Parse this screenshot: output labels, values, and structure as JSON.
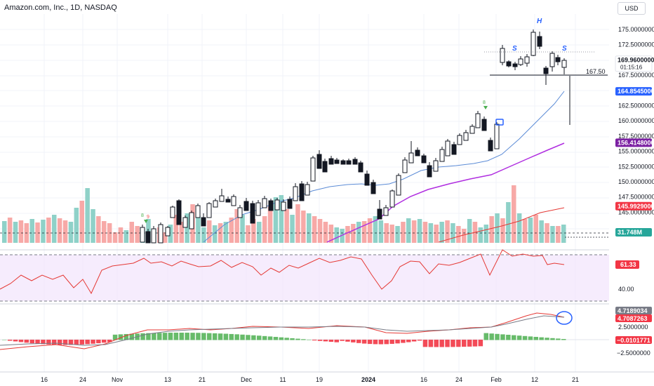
{
  "header": {
    "title": "Amazon.com, Inc., 1D, NASDAQ",
    "currency": "USD"
  },
  "chart_data": {
    "type": "candlestick",
    "price_axis": {
      "ticks": [
        "175.0000000",
        "172.5000000",
        "167.5000000",
        "162.5000000",
        "160.0000000",
        "157.5000000",
        "155.0000000",
        "152.5000000",
        "150.0000000",
        "147.5000000",
        "145.0000000"
      ]
    },
    "price_markers": [
      {
        "label": "169.9600000",
        "sub": "01:15:16",
        "value": 169.96,
        "color": "#ffffff",
        "text_color": "#131722"
      },
      {
        "label": "164.8545000",
        "value": 164.8545,
        "color": "#2962ff",
        "text_color": "#ffffff"
      },
      {
        "label": "156.4148000",
        "value": 156.4148,
        "color": "#7b1fa2",
        "text_color": "#ffffff"
      },
      {
        "label": "145.9929000",
        "value": 145.9929,
        "color": "#f23645",
        "text_color": "#ffffff"
      },
      {
        "label": "31.748M",
        "value": 141.7,
        "color": "#26a69a",
        "text_color": "#ffffff"
      }
    ],
    "neckline_label": "167.50",
    "pattern_labels": [
      "S",
      "H",
      "S"
    ],
    "signal_labels": [
      "8",
      "9",
      "8"
    ],
    "x_ticks": [
      "16",
      "24",
      "Nov",
      "13",
      "21",
      "Dec",
      "11",
      "19",
      "2024",
      "16",
      "24",
      "Feb",
      "12",
      "21"
    ],
    "rsi": {
      "ticks": [
        "40.00"
      ],
      "marker": "61.33",
      "color": "#f23645"
    },
    "macd": {
      "ticks": [
        "2.5000000",
        "−2.5000000"
      ],
      "markers": [
        "4.7189034",
        "4.7087263",
        "−0.0101771"
      ]
    }
  }
}
